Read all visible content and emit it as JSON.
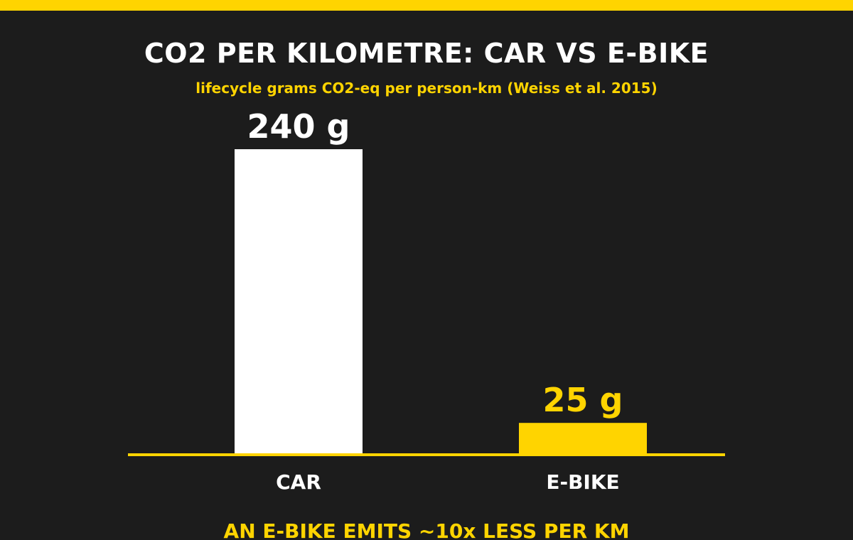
{
  "theme": {
    "background": "#1c1c1c",
    "accent": "#ffd400",
    "text": "#ffffff"
  },
  "header": {
    "title": "CO2 PER KILOMETRE: CAR VS E-BIKE",
    "subtitle": "lifecycle grams CO2-eq per person-km (Weiss et al. 2015)"
  },
  "footer": {
    "text": "AN E-BIKE EMITS ~10x LESS PER KM"
  },
  "chart_data": {
    "type": "bar",
    "title": "CO2 PER KILOMETRE: CAR VS E-BIKE",
    "subtitle": "lifecycle grams CO2-eq per person-km (Weiss et al. 2015)",
    "categories": [
      "CAR",
      "E-BIKE"
    ],
    "values": [
      240,
      25
    ],
    "value_labels": [
      "240 g",
      "25 g"
    ],
    "colors": [
      "#ffffff",
      "#ffd400"
    ],
    "label_colors": [
      "#ffffff",
      "#ffd400"
    ],
    "unit": "g",
    "xlabel": "",
    "ylabel": "",
    "ylim": [
      0,
      240
    ],
    "grid": false,
    "legend": "none"
  }
}
